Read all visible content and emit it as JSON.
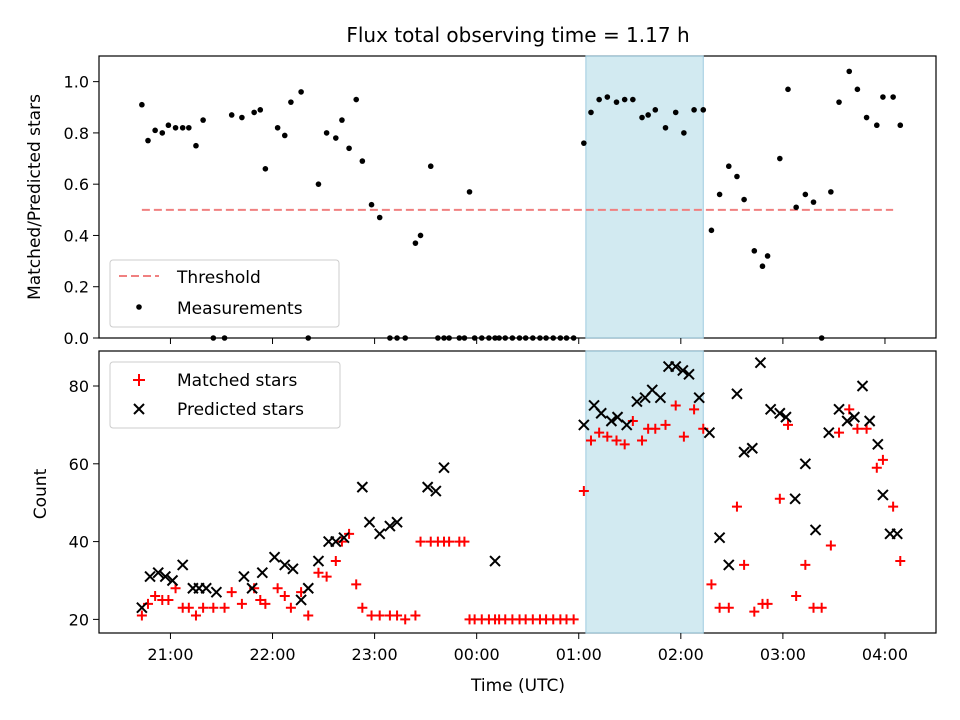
{
  "figure": {
    "title": "Flux total observing time = 1.17 h"
  },
  "chart_data": [
    {
      "type": "scatter",
      "ylabel": "Matched/Predicted stars",
      "xlabel": "",
      "xlim": [
        20.3,
        4.5
      ],
      "ylim": [
        0,
        1.1
      ],
      "x_ticks": [
        21,
        22,
        23,
        0,
        1,
        2,
        3,
        4
      ],
      "y_ticks": [
        0.0,
        0.2,
        0.4,
        0.6,
        0.8,
        1.0
      ],
      "y_tick_labels": [
        "0.0",
        "0.2",
        "0.4",
        "0.6",
        "0.8",
        "1.0"
      ],
      "highlight_span": [
        1.07,
        2.22
      ],
      "legend_placement": "lower-left",
      "series": [
        {
          "name": "Threshold",
          "style": "dashed-line",
          "color": "#f08080",
          "x": [
            20.72,
            4.08
          ],
          "y": [
            0.5,
            0.5
          ]
        },
        {
          "name": "Measurements",
          "style": "dot",
          "color": "#000000",
          "x": [
            20.72,
            20.78,
            20.85,
            20.92,
            20.98,
            21.05,
            21.12,
            21.18,
            21.25,
            21.32,
            21.42,
            21.53,
            21.6,
            21.7,
            21.82,
            21.88,
            21.93,
            22.05,
            22.12,
            22.18,
            22.28,
            22.35,
            22.45,
            22.53,
            22.62,
            22.68,
            22.75,
            22.82,
            22.88,
            22.97,
            23.05,
            23.15,
            23.22,
            23.3,
            23.4,
            23.45,
            23.55,
            23.62,
            23.68,
            23.73,
            23.83,
            23.88,
            23.93,
            23.98,
            0.05,
            0.12,
            0.18,
            0.22,
            0.28,
            0.35,
            0.42,
            0.48,
            0.55,
            0.62,
            0.68,
            0.75,
            0.82,
            0.88,
            0.95,
            1.05,
            1.12,
            1.2,
            1.28,
            1.37,
            1.45,
            1.53,
            1.62,
            1.68,
            1.75,
            1.85,
            1.95,
            2.03,
            2.13,
            2.22,
            2.3,
            2.38,
            2.47,
            2.55,
            2.62,
            2.72,
            2.8,
            2.85,
            2.97,
            3.05,
            3.13,
            3.22,
            3.3,
            3.38,
            3.47,
            3.55,
            3.65,
            3.73,
            3.82,
            3.92,
            3.98,
            4.08,
            4.15
          ],
          "y": [
            0.91,
            0.77,
            0.81,
            0.8,
            0.83,
            0.82,
            0.82,
            0.82,
            0.75,
            0.85,
            0.0,
            0.0,
            0.87,
            0.86,
            0.88,
            0.89,
            0.66,
            0.82,
            0.79,
            0.92,
            0.96,
            0.0,
            0.6,
            0.8,
            0.78,
            0.85,
            0.74,
            0.93,
            0.69,
            0.52,
            0.47,
            0.0,
            0.0,
            0.0,
            0.37,
            0.4,
            0.67,
            0.0,
            0.0,
            0.0,
            0.0,
            0.0,
            0.57,
            0.0,
            0.0,
            0.0,
            0.0,
            0.0,
            0.0,
            0.0,
            0.0,
            0.0,
            0.0,
            0.0,
            0.0,
            0.0,
            0.0,
            0.0,
            0.0,
            0.76,
            0.88,
            0.93,
            0.94,
            0.92,
            0.93,
            0.93,
            0.86,
            0.87,
            0.89,
            0.82,
            0.88,
            0.8,
            0.89,
            0.89,
            0.42,
            0.56,
            0.67,
            0.63,
            0.54,
            0.34,
            0.28,
            0.32,
            0.7,
            0.97,
            0.51,
            0.56,
            0.53,
            0.0,
            0.57,
            0.92,
            1.04,
            0.97,
            0.86,
            0.83,
            0.94,
            0.94,
            0.83
          ]
        }
      ]
    },
    {
      "type": "scatter",
      "ylabel": "Count",
      "xlabel": "Time (UTC)",
      "xlim": [
        20.3,
        4.5
      ],
      "ylim": [
        16.5,
        89
      ],
      "x_ticks": [
        21,
        22,
        23,
        0,
        1,
        2,
        3,
        4
      ],
      "x_tick_labels": [
        "21:00",
        "22:00",
        "23:00",
        "00:00",
        "01:00",
        "02:00",
        "03:00",
        "04:00"
      ],
      "y_ticks": [
        20,
        40,
        60,
        80
      ],
      "y_tick_labels": [
        "20",
        "40",
        "60",
        "80"
      ],
      "highlight_span": [
        1.07,
        2.22
      ],
      "legend_placement": "top-left",
      "series": [
        {
          "name": "Matched stars",
          "style": "plus",
          "color": "#ff0000",
          "x": [
            20.72,
            20.78,
            20.85,
            20.92,
            20.98,
            21.05,
            21.12,
            21.18,
            21.25,
            21.32,
            21.42,
            21.53,
            21.6,
            21.7,
            21.82,
            21.88,
            21.93,
            22.05,
            22.12,
            22.18,
            22.28,
            22.35,
            22.45,
            22.53,
            22.62,
            22.68,
            22.75,
            22.82,
            22.88,
            22.97,
            23.05,
            23.15,
            23.22,
            23.3,
            23.4,
            23.45,
            23.55,
            23.62,
            23.68,
            23.73,
            23.83,
            23.88,
            23.93,
            23.98,
            0.05,
            0.12,
            0.18,
            0.22,
            0.28,
            0.35,
            0.42,
            0.48,
            0.55,
            0.62,
            0.68,
            0.75,
            0.82,
            0.88,
            0.95,
            1.05,
            1.12,
            1.2,
            1.28,
            1.37,
            1.45,
            1.53,
            1.62,
            1.68,
            1.75,
            1.85,
            1.95,
            2.03,
            2.13,
            2.22,
            2.3,
            2.38,
            2.47,
            2.55,
            2.62,
            2.72,
            2.8,
            2.85,
            2.97,
            3.05,
            3.13,
            3.22,
            3.3,
            3.38,
            3.47,
            3.55,
            3.65,
            3.73,
            3.82,
            3.92,
            3.98,
            4.08,
            4.15
          ],
          "y": [
            21,
            24,
            26,
            25,
            25,
            28,
            23,
            23,
            21,
            23,
            23,
            23,
            27,
            24,
            28,
            25,
            24,
            28,
            26,
            23,
            27,
            21,
            32,
            31,
            35,
            40,
            42,
            29,
            23,
            21,
            21,
            21,
            21,
            20,
            21,
            40,
            40,
            40,
            40,
            40,
            40,
            40,
            20,
            20,
            20,
            20,
            20,
            20,
            20,
            20,
            20,
            20,
            20,
            20,
            20,
            20,
            20,
            20,
            20,
            53,
            66,
            68,
            67,
            66,
            65,
            71,
            66,
            69,
            69,
            70,
            75,
            67,
            74,
            69,
            29,
            23,
            23,
            49,
            34,
            22,
            24,
            24,
            51,
            70,
            26,
            34,
            23,
            23,
            39,
            68,
            74,
            69,
            69,
            59,
            61,
            49,
            35
          ]
        },
        {
          "name": "Predicted stars",
          "style": "cross",
          "color": "#000000",
          "x": [
            20.72,
            20.8,
            20.88,
            20.95,
            21.02,
            21.12,
            21.22,
            21.28,
            21.35,
            21.45,
            21.72,
            21.8,
            21.9,
            22.02,
            22.12,
            22.2,
            22.28,
            22.35,
            22.45,
            22.55,
            22.62,
            22.7,
            22.88,
            22.95,
            23.05,
            23.15,
            23.22,
            23.52,
            23.6,
            23.68,
            0.18,
            1.05,
            1.15,
            1.22,
            1.32,
            1.38,
            1.47,
            1.57,
            1.65,
            1.72,
            1.8,
            1.88,
            1.95,
            2.02,
            2.08,
            2.18,
            2.28,
            2.38,
            2.47,
            2.55,
            2.62,
            2.7,
            2.78,
            2.88,
            2.97,
            3.03,
            3.12,
            3.22,
            3.32,
            3.45,
            3.55,
            3.63,
            3.7,
            3.78,
            3.85,
            3.93,
            3.98,
            4.05,
            4.12
          ],
          "y": [
            23,
            31,
            32,
            31,
            30,
            34,
            28,
            28,
            28,
            27,
            31,
            28,
            32,
            36,
            34,
            33,
            25,
            28,
            35,
            40,
            40,
            41,
            54,
            45,
            42,
            44,
            45,
            54,
            53,
            59,
            35,
            70,
            75,
            73,
            71,
            72,
            70,
            76,
            77,
            79,
            77,
            85,
            85,
            84,
            83,
            77,
            68,
            41,
            34,
            78,
            63,
            64,
            86,
            74,
            73,
            72,
            51,
            60,
            43,
            68,
            74,
            71,
            72,
            80,
            71,
            65,
            52,
            42,
            42
          ]
        }
      ]
    }
  ]
}
